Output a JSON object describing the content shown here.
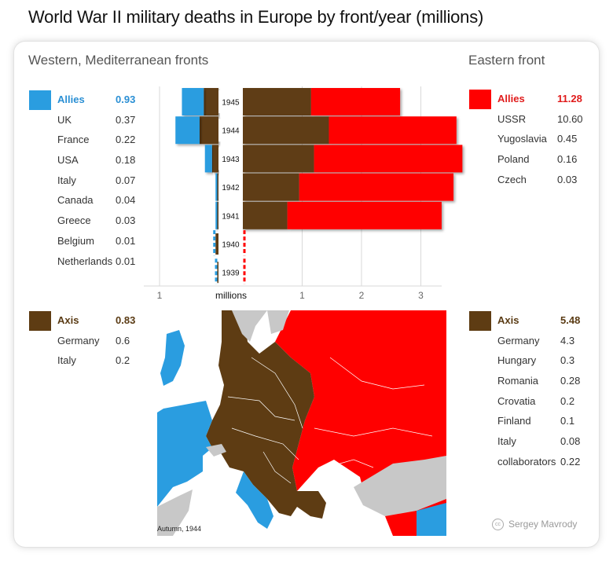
{
  "title": "World War II military deaths in Europe by front/year (millions)",
  "west": {
    "heading": "Western, Mediterranean fronts",
    "allies": {
      "label": "Allies",
      "total": "0.93",
      "rows": [
        {
          "name": "UK",
          "value": "0.37"
        },
        {
          "name": "France",
          "value": "0.22"
        },
        {
          "name": "USA",
          "value": "0.18"
        },
        {
          "name": "Italy",
          "value": "0.07"
        },
        {
          "name": "Canada",
          "value": "0.04"
        },
        {
          "name": "Greece",
          "value": "0.03"
        },
        {
          "name": "Belgium",
          "value": "0.01"
        },
        {
          "name": "Netherlands",
          "value": "0.01"
        }
      ]
    },
    "axis": {
      "label": "Axis",
      "total": "0.83",
      "rows": [
        {
          "name": "Germany",
          "value": "0.6"
        },
        {
          "name": "Italy",
          "value": "0.2"
        }
      ]
    }
  },
  "east": {
    "heading": "Eastern front",
    "allies": {
      "label": "Allies",
      "total": "11.28",
      "rows": [
        {
          "name": "USSR",
          "value": "10.60"
        },
        {
          "name": "Yugoslavia",
          "value": "0.45"
        },
        {
          "name": "Poland",
          "value": "0.16"
        },
        {
          "name": "Czech",
          "value": "0.03"
        }
      ]
    },
    "axis": {
      "label": "Axis",
      "total": "5.48",
      "rows": [
        {
          "name": "Germany",
          "value": "4.3"
        },
        {
          "name": "Hungary",
          "value": "0.3"
        },
        {
          "name": "Romania",
          "value": "0.28"
        },
        {
          "name": "Crovatia",
          "value": "0.2"
        },
        {
          "name": "Finland",
          "value": "0.1"
        },
        {
          "name": "Italy",
          "value": "0.08"
        },
        {
          "name": "collaborators",
          "value": "0.22"
        }
      ]
    }
  },
  "colors": {
    "allies_west": "#2a9de0",
    "allies_east": "#ff0000",
    "axis": "#5e3c13",
    "neutral": "#c8c8c8"
  },
  "chart_data": {
    "type": "bar",
    "orientation": "horizontal-diverging",
    "categories": [
      "1945",
      "1944",
      "1943",
      "1942",
      "1941",
      "1940",
      "1939"
    ],
    "xlabel": "millions",
    "west_ticks": [
      "1"
    ],
    "east_ticks": [
      "1",
      "2",
      "3"
    ],
    "west_xlim": [
      0,
      1.05
    ],
    "east_xlim": [
      0,
      3.4
    ],
    "series": [
      {
        "name": "Western, Mediterranean fronts — Axis",
        "front": "west",
        "side": "axis",
        "values": [
          0.25,
          0.32,
          0.11,
          0.02,
          0.02,
          0.05,
          0.02
        ]
      },
      {
        "name": "Western, Mediterranean fronts — Allies",
        "front": "west",
        "side": "allies",
        "values": [
          0.37,
          0.41,
          0.12,
          0.03,
          0.03,
          0.02,
          0.02
        ]
      },
      {
        "name": "Eastern front — Axis",
        "front": "east",
        "side": "axis",
        "values": [
          1.15,
          1.45,
          1.2,
          0.95,
          0.75,
          0,
          0
        ]
      },
      {
        "name": "Eastern front — Allies",
        "front": "east",
        "side": "allies",
        "values": [
          1.5,
          2.15,
          2.5,
          2.6,
          2.6,
          0.05,
          0.05
        ]
      }
    ]
  },
  "map": {
    "caption": "Autumn, 1944"
  },
  "credit": "Sergey Mavrody",
  "credit_icon": "cc-icon"
}
